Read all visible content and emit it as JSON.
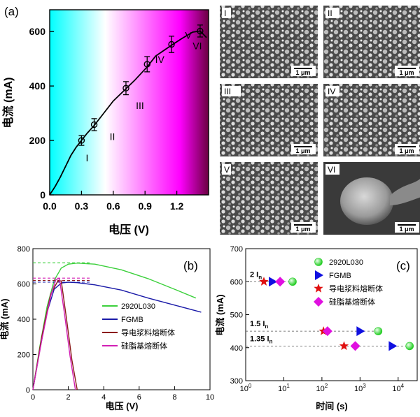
{
  "panel_labels": {
    "a": "(a)",
    "b": "(b)",
    "c": "(c)"
  },
  "colors": {
    "curve": "#000000",
    "gradient_stops": [
      "#00ffff",
      "#ffffff",
      "#ff00ff",
      "#6a0040"
    ],
    "s2920": "#3cd03c",
    "fgmb": "#1a1aa8",
    "paste": "#8b1a1a",
    "silicone": "#d21fb4",
    "green_marker": "#22cc22",
    "blue_marker": "#1010e0",
    "red_marker": "#e01010",
    "magenta_marker": "#e010e0"
  },
  "sem_images": [
    {
      "label": "I",
      "scale": "1 μm"
    },
    {
      "label": "II",
      "scale": "1 μm"
    },
    {
      "label": "III",
      "scale": "1 μm"
    },
    {
      "label": "IV",
      "scale": "1 μm"
    },
    {
      "label": "V",
      "scale": "1 μm"
    },
    {
      "label": "VI",
      "scale": "1 μm"
    }
  ],
  "chart_data": [
    {
      "id": "a",
      "type": "line",
      "xlabel": "电压 (V)",
      "ylabel": "电流 (mA)",
      "xlim": [
        0,
        1.5
      ],
      "ylim": [
        0,
        680
      ],
      "xticks": [
        0.0,
        0.3,
        0.6,
        0.9,
        1.2
      ],
      "xtick_labels": [
        "0.0",
        "0.3",
        "0.6",
        "0.9",
        "1.2"
      ],
      "yticks": [
        0,
        200,
        400,
        600
      ],
      "curve": {
        "x": [
          0,
          0.05,
          0.1,
          0.15,
          0.2,
          0.25,
          0.3,
          0.35,
          0.42,
          0.5,
          0.6,
          0.72,
          0.8,
          0.92,
          1.0,
          1.15,
          1.25,
          1.35,
          1.42,
          1.48
        ],
        "y": [
          0,
          30,
          65,
          105,
          145,
          175,
          200,
          225,
          255,
          295,
          345,
          390,
          420,
          470,
          510,
          550,
          575,
          598,
          602,
          578
        ]
      },
      "points": [
        {
          "x": 0.3,
          "y": 200,
          "err": 18,
          "label": "I"
        },
        {
          "x": 0.42,
          "y": 258,
          "err": 22,
          "label": "II"
        },
        {
          "x": 0.72,
          "y": 392,
          "err": 24,
          "label": "III"
        },
        {
          "x": 0.92,
          "y": 480,
          "err": 28,
          "label": "IV"
        },
        {
          "x": 1.15,
          "y": 553,
          "err": 30,
          "label": "V"
        },
        {
          "x": 1.42,
          "y": 602,
          "err": 22,
          "label": "VI"
        }
      ]
    },
    {
      "id": "b",
      "type": "line",
      "xlabel": "电压 (V)",
      "ylabel": "电流 (mA)",
      "xlim": [
        0,
        10
      ],
      "ylim": [
        0,
        800
      ],
      "xticks": [
        0,
        2,
        4,
        6,
        8,
        10
      ],
      "yticks": [
        0,
        200,
        400,
        600,
        800
      ],
      "series": [
        {
          "name": "2920L030",
          "colorKey": "s2920",
          "x": [
            0,
            0.4,
            0.8,
            1.2,
            1.6,
            2.0,
            2.5,
            3.5,
            5,
            6.5,
            8,
            9.2
          ],
          "y": [
            0,
            250,
            470,
            620,
            690,
            712,
            718,
            712,
            680,
            630,
            570,
            520
          ],
          "plateau": 720
        },
        {
          "name": "FGMB",
          "colorKey": "fgmb",
          "x": [
            0,
            0.4,
            0.8,
            1.2,
            1.6,
            2.0,
            2.5,
            3.5,
            5,
            6.5,
            8,
            9.5
          ],
          "y": [
            0,
            230,
            440,
            570,
            605,
            610,
            607,
            595,
            565,
            520,
            480,
            440
          ],
          "plateau": 610
        },
        {
          "name": "导电浆料熔断体",
          "colorKey": "paste",
          "x": [
            0,
            0.5,
            1.0,
            1.4,
            1.6,
            1.9,
            2.2,
            2.5
          ],
          "y": [
            0,
            300,
            540,
            615,
            618,
            400,
            170,
            0
          ],
          "plateau": 620
        },
        {
          "name": "硅脂基熔断体",
          "colorKey": "silicone",
          "x": [
            0,
            0.5,
            1.0,
            1.3,
            1.5,
            1.8,
            2.1,
            2.4
          ],
          "y": [
            0,
            280,
            530,
            625,
            632,
            420,
            190,
            0
          ],
          "plateau": 633
        }
      ]
    },
    {
      "id": "c",
      "type": "scatter",
      "xlabel": "时间 (s)",
      "ylabel": "电流 (mA)",
      "xscale": "log",
      "xlim_exp": [
        0,
        4.5
      ],
      "ylim": [
        300,
        700
      ],
      "xtick_labels": [
        {
          "base": "10",
          "exp": "0"
        },
        {
          "base": "10",
          "exp": "1"
        },
        {
          "base": "10",
          "exp": "2"
        },
        {
          "base": "10",
          "exp": "3"
        },
        {
          "base": "10",
          "exp": "4"
        }
      ],
      "yticks": [
        300,
        400,
        500,
        600,
        700
      ],
      "legend": [
        {
          "name": "2920L030",
          "marker": "sphere",
          "colorKey": "green_marker"
        },
        {
          "name": "FGMB",
          "marker": "triangle",
          "colorKey": "blue_marker"
        },
        {
          "name": "导电浆料熔断体",
          "marker": "star",
          "colorKey": "red_marker"
        },
        {
          "name": "硅脂基熔断体",
          "marker": "diamond",
          "colorKey": "magenta_marker"
        }
      ],
      "rows": [
        {
          "label_main": "2 I",
          "label_sub": "n",
          "y": 600,
          "points": [
            {
              "series": "star",
              "t": 3
            },
            {
              "series": "triangle",
              "t": 5
            },
            {
              "series": "diamond",
              "t": 8
            },
            {
              "series": "sphere",
              "t": 17
            }
          ]
        },
        {
          "label_main": "1.5 I",
          "label_sub": "n",
          "y": 450,
          "points": [
            {
              "series": "star",
              "t": 110
            },
            {
              "series": "diamond",
              "t": 140
            },
            {
              "series": "triangle",
              "t": 1000
            },
            {
              "series": "sphere",
              "t": 3000
            }
          ]
        },
        {
          "label_main": "1.35 I",
          "label_sub": "n",
          "y": 405,
          "points": [
            {
              "series": "star",
              "t": 380
            },
            {
              "series": "diamond",
              "t": 750
            },
            {
              "series": "triangle",
              "t": 7000
            },
            {
              "series": "sphere",
              "t": 20000
            }
          ]
        }
      ]
    }
  ]
}
